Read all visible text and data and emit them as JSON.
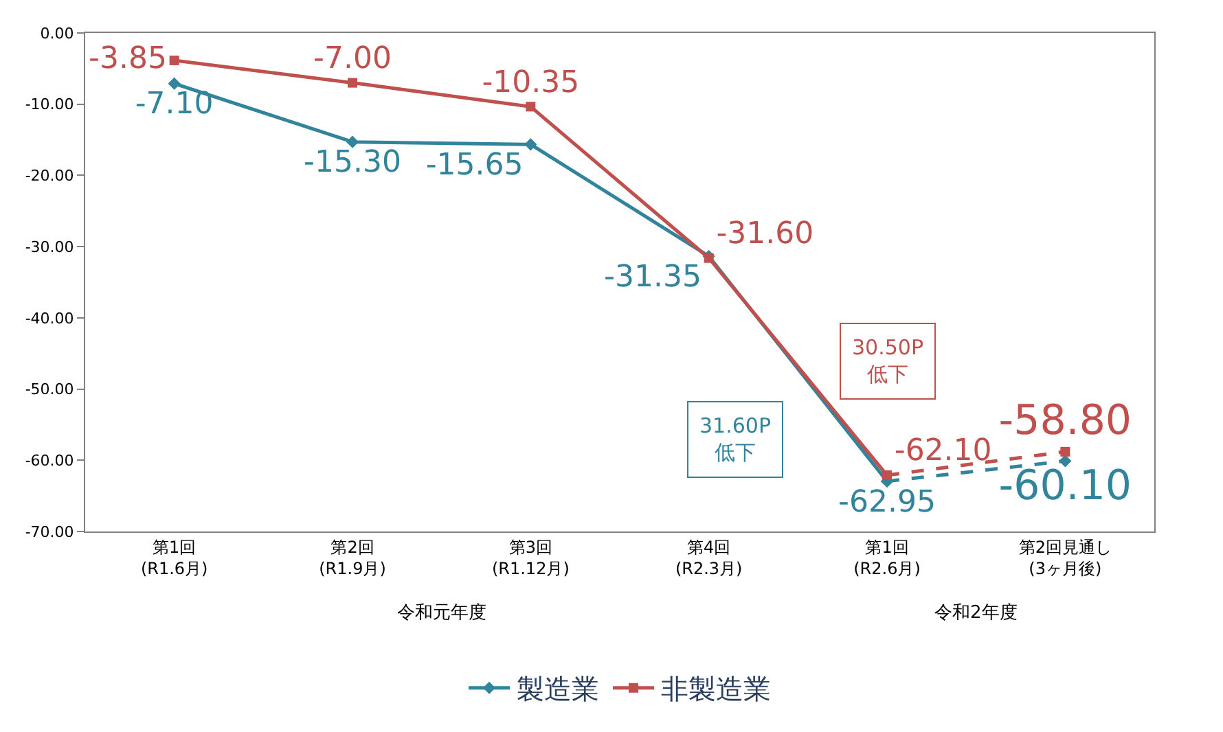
{
  "chart_data": {
    "type": "line",
    "categories": [
      "第1回\n(R1.6月)",
      "第2回\n(R1.9月)",
      "第3回\n(R1.12月)",
      "第4回\n(R2.3月)",
      "第1回\n(R2.6月)",
      "第2回見通し\n(3ヶ月後)"
    ],
    "series": [
      {
        "name": "製造業",
        "color": "#31849b",
        "marker": "diamond",
        "line_style": "solid",
        "values": [
          -7.1,
          -15.3,
          -15.65,
          -31.35,
          -62.95,
          null
        ],
        "value_labels": [
          "-7.10",
          "-15.30",
          "-15.65",
          "-31.35",
          "-62.95",
          null
        ]
      },
      {
        "name": "非製造業",
        "color": "#c0504d",
        "marker": "square",
        "line_style": "solid",
        "values": [
          -3.85,
          -7.0,
          -10.35,
          -31.6,
          -62.1,
          null
        ],
        "value_labels": [
          "-3.85",
          "-7.00",
          "-10.35",
          "-31.60",
          "-62.10",
          null
        ]
      },
      {
        "color": "#31849b",
        "marker": "diamond",
        "line_style": "dashed",
        "values": [
          null,
          null,
          null,
          null,
          -62.95,
          -60.1
        ],
        "value_labels": [
          null,
          null,
          null,
          null,
          null,
          "-60.10"
        ]
      },
      {
        "color": "#c0504d",
        "marker": "square",
        "line_style": "dashed",
        "values": [
          null,
          null,
          null,
          null,
          -62.1,
          -58.8
        ],
        "value_labels": [
          null,
          null,
          null,
          null,
          null,
          "-58.80"
        ]
      }
    ],
    "ylim": [
      -70,
      0
    ],
    "yticks": [
      {
        "value": 0,
        "label": "0.00"
      },
      {
        "value": -10,
        "label": "-10.00"
      },
      {
        "value": -20,
        "label": "-20.00"
      },
      {
        "value": -30,
        "label": "-30.00"
      },
      {
        "value": -40,
        "label": "-40.00"
      },
      {
        "value": -50,
        "label": "-50.00"
      },
      {
        "value": -60,
        "label": "-60.00"
      },
      {
        "value": -70,
        "label": "-70.00"
      }
    ],
    "legend": "bottom",
    "annotations": [
      "令和元年度",
      "令和2年度",
      "30.50P\n低下",
      "31.60P\n低下"
    ]
  }
}
